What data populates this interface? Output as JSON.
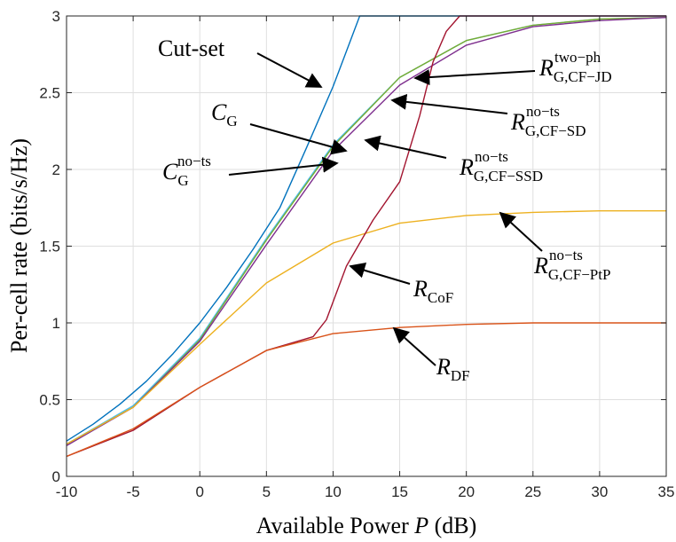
{
  "chart_data": {
    "type": "line",
    "xlabel": "Available Power P (dB)",
    "xlabel_parts": {
      "pre": "Available Power ",
      "var": "P",
      "post": " (dB)"
    },
    "ylabel": "Per-cell rate (bits/s/Hz)",
    "xlim": [
      -10,
      35
    ],
    "ylim": [
      0,
      3
    ],
    "xticks": [
      -10,
      -5,
      0,
      5,
      10,
      15,
      20,
      25,
      30,
      35
    ],
    "yticks": [
      0,
      0.5,
      1,
      1.5,
      2,
      2.5,
      3
    ],
    "grid": true,
    "legend": "none",
    "series": [
      {
        "name": "Cut-set",
        "color": "#0072BD",
        "x": [
          -10,
          -8,
          -6,
          -4,
          -2,
          0,
          2,
          4,
          6,
          8,
          10,
          11,
          12,
          35
        ],
        "y": [
          0.23,
          0.34,
          0.47,
          0.62,
          0.8,
          1.0,
          1.23,
          1.48,
          1.75,
          2.14,
          2.54,
          2.77,
          3.0,
          3.0
        ]
      },
      {
        "name": "C_G",
        "color": "#4DBEEE",
        "x": [
          -10,
          -5,
          0,
          5,
          10,
          15,
          20,
          25,
          30,
          35
        ],
        "y": [
          0.21,
          0.46,
          0.9,
          1.55,
          2.16,
          2.6,
          2.84,
          2.94,
          2.98,
          2.99
        ]
      },
      {
        "name": "C_G^no-ts",
        "color": "#77AC30",
        "x": [
          -10,
          -5,
          0,
          5,
          10,
          15,
          20,
          25,
          30,
          35
        ],
        "y": [
          0.21,
          0.45,
          0.89,
          1.54,
          2.15,
          2.6,
          2.84,
          2.94,
          2.98,
          2.99
        ]
      },
      {
        "name": "R_G,CF-JD^two-ph",
        "color": "#7E2F8E",
        "x": [
          -10,
          -5,
          0,
          5,
          10,
          15,
          20,
          25,
          30,
          35
        ],
        "y": [
          0.2,
          0.45,
          0.88,
          1.51,
          2.12,
          2.55,
          2.81,
          2.93,
          2.97,
          2.99
        ]
      },
      {
        "name": "R_G,CF-PtP^no-ts",
        "color": "#EDB120",
        "x": [
          -10,
          -5,
          0,
          5,
          10,
          15,
          20,
          25,
          30,
          35
        ],
        "y": [
          0.21,
          0.45,
          0.86,
          1.26,
          1.52,
          1.65,
          1.7,
          1.72,
          1.73,
          1.73
        ]
      },
      {
        "name": "R_CoF",
        "color": "#A2142F",
        "x": [
          -10,
          -5,
          0,
          5,
          8.5,
          9.5,
          11,
          13,
          15,
          16.5,
          17.5,
          18.5,
          19.5,
          35
        ],
        "y": [
          0.13,
          0.3,
          0.58,
          0.82,
          0.91,
          1.02,
          1.37,
          1.67,
          1.92,
          2.35,
          2.7,
          2.9,
          3.0,
          3.0
        ]
      },
      {
        "name": "R_DF",
        "color": "#D95319",
        "x": [
          -10,
          -5,
          0,
          5,
          10,
          15,
          20,
          25,
          30,
          35
        ],
        "y": [
          0.13,
          0.31,
          0.58,
          0.82,
          0.93,
          0.97,
          0.99,
          1.0,
          1.0,
          1.0
        ]
      }
    ],
    "annotations": [
      {
        "id": "cutset",
        "text": "Cut-set",
        "sub": "",
        "sup": ""
      },
      {
        "id": "cg",
        "text": "C",
        "sub": "G",
        "sup": ""
      },
      {
        "id": "cgnots",
        "text": "C",
        "sub": "G",
        "sup": "no−ts"
      },
      {
        "id": "rjd",
        "text": "R",
        "sub": "G,CF−JD",
        "sup": "two−ph"
      },
      {
        "id": "rsd",
        "text": "R",
        "sub": "G,CF−SD",
        "sup": "no−ts"
      },
      {
        "id": "rssd",
        "text": "R",
        "sub": "G,CF−SSD",
        "sup": "no−ts"
      },
      {
        "id": "rptp",
        "text": "R",
        "sub": "G,CF−PtP",
        "sup": "no−ts"
      },
      {
        "id": "rcof",
        "text": "R",
        "sub": "CoF",
        "sup": ""
      },
      {
        "id": "rdf",
        "text": "R",
        "sub": "DF",
        "sup": ""
      }
    ]
  }
}
